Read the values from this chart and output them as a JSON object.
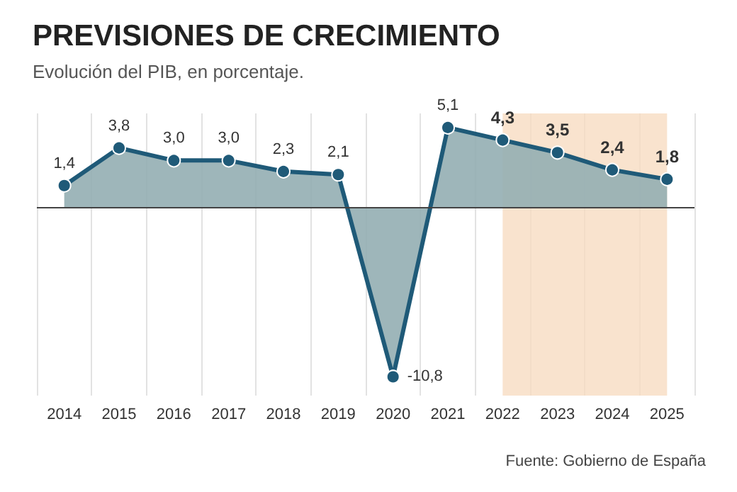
{
  "chart_data": {
    "type": "area",
    "title": "PREVISIONES DE CRECIMIENTO",
    "subtitle": "Evolución del PIB, en porcentaje.",
    "categories": [
      "2014",
      "2015",
      "2016",
      "2017",
      "2018",
      "2019",
      "2020",
      "2021",
      "2022",
      "2023",
      "2024",
      "2025"
    ],
    "series": [
      {
        "color": "#1f5a78",
        "values": [
          1.4,
          3.8,
          3.0,
          3.0,
          2.3,
          2.1,
          -10.8,
          5.1,
          4.3,
          3.5,
          2.4,
          1.8
        ],
        "value_labels": [
          "1,4",
          "3,8",
          "3,0",
          "3,0",
          "2,3",
          "2,1",
          "-10,8",
          "5,1",
          "4,3",
          "3,5",
          "2,4",
          "1,8"
        ]
      }
    ],
    "bands": [
      {
        "axis": "x",
        "from": "2022",
        "to": "2025",
        "color": "#f7dcc2"
      }
    ],
    "ref_lines": [
      {
        "axis": "y",
        "value": 0,
        "color": "#444444"
      }
    ],
    "marker": "circle",
    "grid": "x",
    "tick_labels": "x",
    "annotations": [
      "Fuente: Gobierno de España"
    ]
  }
}
